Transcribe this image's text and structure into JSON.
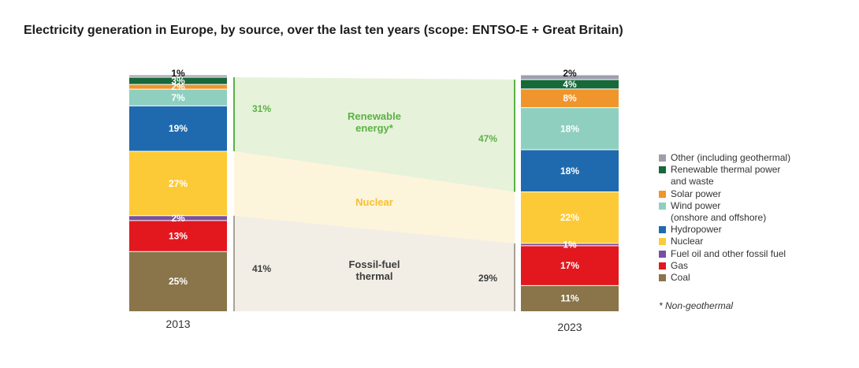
{
  "title": "Electricity generation in Europe, by source, over the last ten years (scope: ENTSO-E + Great Britain)",
  "colors": {
    "other": "#9e9fad",
    "renewable_thermal": "#17693a",
    "solar": "#f0952c",
    "wind": "#8fcfbf",
    "hydro": "#1f6aaf",
    "nuclear": "#fdca37",
    "fuel_oil": "#7a4f9f",
    "gas": "#e3171e",
    "coal": "#8a744a",
    "band_renewable": "#e6f2da",
    "band_nuclear": "#fdf4dc",
    "band_fossil": "#f2ede5",
    "renewable_text": "#5cb146",
    "nuclear_text": "#f6c12e",
    "fossil_text": "#3d3d3d"
  },
  "chart_data": {
    "type": "bar",
    "stacked": true,
    "categories": [
      "2013",
      "2023"
    ],
    "series": [
      {
        "name": "Coal",
        "key": "coal",
        "values": [
          25,
          11
        ],
        "labels": [
          "25%",
          "11%"
        ]
      },
      {
        "name": "Gas",
        "key": "gas",
        "values": [
          13,
          17
        ],
        "labels": [
          "13%",
          "17%"
        ]
      },
      {
        "name": "Fuel oil and other fossil fuel",
        "key": "fuel_oil",
        "values": [
          2,
          1
        ],
        "labels": [
          "2%",
          "1%"
        ]
      },
      {
        "name": "Nuclear",
        "key": "nuclear",
        "values": [
          27,
          22
        ],
        "labels": [
          "27%",
          "22%"
        ]
      },
      {
        "name": "Hydropower",
        "key": "hydro",
        "values": [
          19,
          18
        ],
        "labels": [
          "19%",
          "18%"
        ]
      },
      {
        "name": "Wind power (onshore and offshore)",
        "key": "wind",
        "values": [
          7,
          18
        ],
        "labels": [
          "7%",
          "18%"
        ]
      },
      {
        "name": "Solar power",
        "key": "solar",
        "values": [
          2,
          8
        ],
        "labels": [
          "2%",
          "8%"
        ]
      },
      {
        "name": "Renewable thermal power and waste",
        "key": "renewable_thermal",
        "values": [
          3,
          4
        ],
        "labels": [
          "3%",
          "4%"
        ]
      },
      {
        "name": "Other (including geothermal)",
        "key": "other",
        "values": [
          1,
          2
        ],
        "labels": [
          "1%",
          "2%"
        ]
      }
    ],
    "groups": [
      {
        "name": "Renewable energy*",
        "key": "renewable",
        "values": [
          31,
          47
        ],
        "labels": [
          "31%",
          "47%"
        ]
      },
      {
        "name": "Nuclear",
        "key": "nuclear",
        "values": [
          27,
          22
        ]
      },
      {
        "name": "Fossil-fuel thermal",
        "key": "fossil",
        "values": [
          41,
          29
        ],
        "labels": [
          "41%",
          "29%"
        ]
      }
    ],
    "ylim": [
      0,
      100
    ],
    "legend_position": "right"
  },
  "legend": [
    {
      "key": "other",
      "lines": [
        "Other (including geothermal)"
      ]
    },
    {
      "key": "renewable_thermal",
      "lines": [
        "Renewable thermal power",
        "and waste"
      ]
    },
    {
      "key": "solar",
      "lines": [
        "Solar power"
      ]
    },
    {
      "key": "wind",
      "lines": [
        "Wind power",
        "(onshore and offshore)"
      ]
    },
    {
      "key": "hydro",
      "lines": [
        "Hydropower"
      ]
    },
    {
      "key": "nuclear",
      "lines": [
        "Nuclear"
      ]
    },
    {
      "key": "fuel_oil",
      "lines": [
        "Fuel oil and other fossil fuel"
      ]
    },
    {
      "key": "gas",
      "lines": [
        "Gas"
      ]
    },
    {
      "key": "coal",
      "lines": [
        "Coal"
      ]
    }
  ],
  "footnote": "* Non-geothermal"
}
